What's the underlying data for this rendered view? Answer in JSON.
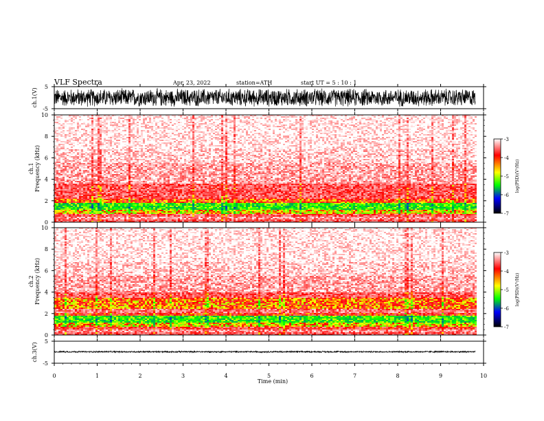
{
  "header": {
    "title": "VLF  Spectra",
    "date": "Apr. 23, 2022",
    "station": "station=ATH",
    "start": "start  UT  =    5  : 10 : 1"
  },
  "chart_data": {
    "type": "heatmap",
    "xlabel": "Time  (min)",
    "xlim": [
      0,
      10
    ],
    "xticks": [
      "0",
      "1",
      "2",
      "3",
      "4",
      "5",
      "6",
      "7",
      "8",
      "9",
      "10"
    ],
    "data_end_min": 9.8,
    "panels": [
      {
        "id": "ch1-waveform",
        "type": "line",
        "ylabel": "ch.1(V)",
        "ylim": [
          -5,
          5
        ],
        "yticks": [
          "5",
          "-5"
        ],
        "amplitude_approx": 4.5
      },
      {
        "id": "ch1-spectrogram",
        "type": "heatmap",
        "ylabel_line1": "ch.1",
        "ylabel_line2": "Frequency  (kHz)",
        "ylim": [
          0,
          10
        ],
        "yticks": [
          "0",
          "2",
          "4",
          "6",
          "8",
          "10"
        ],
        "bands_khz_log_psd": [
          [
            0.0,
            0.3,
            -3.6
          ],
          [
            0.3,
            0.5,
            -3.4
          ],
          [
            0.5,
            0.8,
            -3.6
          ],
          [
            0.8,
            1.1,
            -4.2
          ],
          [
            1.1,
            1.8,
            -4.6
          ],
          [
            1.8,
            2.2,
            -3.9
          ],
          [
            2.2,
            3.6,
            -3.6
          ],
          [
            3.6,
            5.5,
            -3.3
          ],
          [
            5.5,
            6.8,
            -3.15
          ],
          [
            6.8,
            10.0,
            -3.05
          ]
        ]
      },
      {
        "id": "ch2-spectrogram",
        "type": "heatmap",
        "ylabel_line1": "ch.2",
        "ylabel_line2": "Frequency  (kHz)",
        "ylim": [
          0,
          10
        ],
        "yticks": [
          "0",
          "2",
          "4",
          "6",
          "8",
          "10"
        ],
        "bands_khz_log_psd": [
          [
            0.0,
            0.3,
            -3.6
          ],
          [
            0.3,
            0.5,
            -3.4
          ],
          [
            0.5,
            0.8,
            -3.7
          ],
          [
            0.8,
            1.1,
            -4.2
          ],
          [
            1.1,
            1.8,
            -4.6
          ],
          [
            1.8,
            2.0,
            -3.8
          ],
          [
            2.0,
            2.5,
            -3.5
          ],
          [
            2.5,
            3.5,
            -4.0
          ],
          [
            3.5,
            4.0,
            -3.6
          ],
          [
            4.0,
            5.5,
            -3.3
          ],
          [
            5.5,
            6.8,
            -3.15
          ],
          [
            6.8,
            10.0,
            -3.05
          ]
        ]
      },
      {
        "id": "ch3-waveform",
        "type": "line",
        "ylabel": "ch.3(V)",
        "ylim": [
          -5,
          5
        ],
        "yticks": [
          "5",
          "-5"
        ],
        "offset_approx": 0.2,
        "amplitude_approx": 0.4
      }
    ],
    "colorbar": {
      "label": "log(PSD)(V²/Hz)",
      "ticks": [
        "-3",
        "-4",
        "-5",
        "-6",
        "-7"
      ],
      "range": [
        -7,
        -3
      ],
      "stops": [
        "#ffffff",
        "#ff0000",
        "#ffff00",
        "#00ff00",
        "#0000ff",
        "#000000"
      ]
    }
  }
}
